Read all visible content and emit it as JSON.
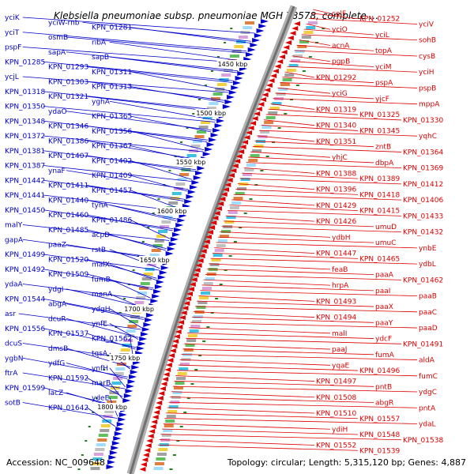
{
  "title": "Klebsiella pneumoniae subsp. pneumoniae MGH 78578, complete ...",
  "footer": {
    "accession": "Accession: NC_009648",
    "summary": "Topology: circular; Length: 5,315,120 bp; Genes: 4,887"
  },
  "colors": {
    "forward": "#0000cc",
    "reverse": "#dd0000",
    "backbone": "#808080"
  },
  "scale_labels": [
    "1450 kbp",
    "1500 kbp",
    "1550 kbp",
    "1600 kbp",
    "1650 kbp",
    "1700 kbp",
    "1750 kbp",
    "1800 kbp"
  ],
  "forward_labels": [
    "yciK",
    "yciW-rnb",
    "KPN_01281",
    "yciT",
    "osmB",
    "ribA",
    "pspF",
    "sapA",
    "sapB",
    "KPN_01285",
    "KPN_01293",
    "KPN_01311",
    "ycjL",
    "KPN_01303",
    "KPN_01313",
    "KPN_01318",
    "KPN_01321",
    "yghA",
    "KPN_01350",
    "ydaO",
    "KPN_01365",
    "KPN_01348",
    "KPN_01346",
    "KPN_01356",
    "KPN_01372",
    "KPN_01386",
    "KPN_01367",
    "KPN_01381",
    "KPN_01407",
    "KPN_01402",
    "KPN_01387",
    "ynaF",
    "KPN_01409",
    "KPN_01442",
    "KPN_01411",
    "KPN_01457",
    "KPN_01441",
    "KPN_01440",
    "tynA",
    "KPN_01450",
    "KPN_01460",
    "KPN_01486",
    "malY",
    "KPN_01485",
    "acpD",
    "gapA",
    "paaZ",
    "rstB",
    "KPN_01499",
    "KPN_01520",
    "malX",
    "KPN_01492",
    "KPN_01509",
    "fumB",
    "ydaA",
    "ydgI",
    "manA",
    "KPN_01544",
    "abgA",
    "ydgH",
    "asr",
    "dcuR",
    "ynfE",
    "KPN_01556",
    "KPN_01537",
    "KPN_01562",
    "dcuS",
    "dmsB",
    "tqsA",
    "ygbN",
    "ydfG",
    "ynfH",
    "ftrA",
    "KPN_01592",
    "marB",
    "KPN_01599",
    "lacZ",
    "ydeE",
    "sotB",
    "KPN_01642"
  ],
  "reverse_labels": [
    "celF",
    "KPN_01252",
    "yciV",
    "yciO",
    "yciL",
    "sohB",
    "acnA",
    "topA",
    "cysB",
    "pgpB",
    "yciM",
    "yciH",
    "KPN_01292",
    "pspA",
    "pspB",
    "yciG",
    "yjcF",
    "mppA",
    "KPN_01319",
    "KPN_01325",
    "KPN_01330",
    "KPN_01340",
    "KPN_01345",
    "yqhC",
    "KPN_01351",
    "zntB",
    "KPN_01364",
    "yhjC",
    "dbpA",
    "KPN_01369",
    "KPN_01388",
    "KPN_01389",
    "KPN_01412",
    "KPN_01396",
    "KPN_01418",
    "KPN_01406",
    "KPN_01429",
    "KPN_01415",
    "KPN_01433",
    "KPN_01426",
    "umuD",
    "KPN_01432",
    "ydbH",
    "umuC",
    "ynbE",
    "KPN_01447",
    "KPN_01465",
    "ydbL",
    "feaB",
    "paaA",
    "KPN_01462",
    "hrpA",
    "paaI",
    "paaB",
    "KPN_01493",
    "paaX",
    "paaC",
    "KPN_01494",
    "paaY",
    "paaD",
    "malI",
    "ydcF",
    "KPN_01491",
    "paaJ",
    "fumA",
    "aldA",
    "yqaE",
    "KPN_01496",
    "fumC",
    "KPN_01497",
    "pntB",
    "ydgC",
    "KPN_01508",
    "abgR",
    "pntA",
    "KPN_01510",
    "KPN_01557",
    "ydaL",
    "ydiH",
    "KPN_01548",
    "KPN_01538",
    "KPN_01552",
    "KPN_01539"
  ]
}
